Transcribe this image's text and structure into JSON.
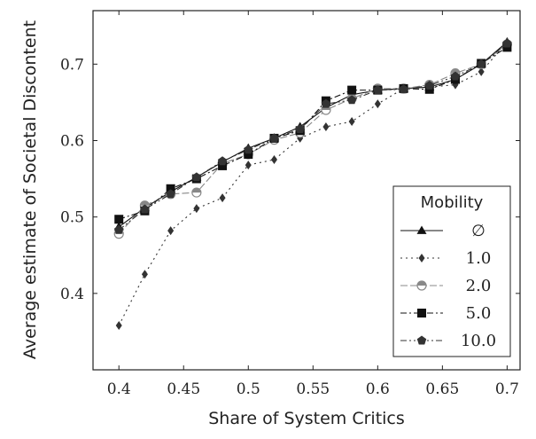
{
  "chart_data": {
    "type": "line",
    "xlabel": "Share of System Critics",
    "ylabel": "Average estimate of Societal Discontent",
    "xlim": [
      0.38,
      0.71
    ],
    "ylim": [
      0.3,
      0.77
    ],
    "xticks": [
      0.4,
      0.45,
      0.5,
      0.55,
      0.6,
      0.65,
      0.7
    ],
    "xtick_labels": [
      "0.4",
      "0.45",
      "0.5",
      "0.55",
      "0.6",
      "0.65",
      "0.7"
    ],
    "yticks": [
      0.4,
      0.5,
      0.6,
      0.7
    ],
    "ytick_labels": [
      "0.4",
      "0.5",
      "0.6",
      "0.7"
    ],
    "grid": false,
    "legend": {
      "title": "Mobility",
      "placement": "bottom-right"
    },
    "x": [
      0.4,
      0.42,
      0.44,
      0.46,
      0.48,
      0.5,
      0.52,
      0.54,
      0.56,
      0.58,
      0.6,
      0.62,
      0.64,
      0.66,
      0.68,
      0.7
    ],
    "series": [
      {
        "name": "∅",
        "marker": "triangle",
        "dash": "",
        "color": "#111111",
        "values": [
          0.487,
          0.512,
          0.533,
          0.552,
          0.572,
          0.59,
          0.603,
          0.618,
          0.643,
          0.66,
          0.666,
          0.668,
          0.67,
          0.68,
          0.7,
          0.729
        ]
      },
      {
        "name": "1.0",
        "marker": "diamond",
        "dash": "2,4",
        "color": "#333333",
        "values": [
          0.358,
          0.425,
          0.482,
          0.511,
          0.525,
          0.568,
          0.575,
          0.603,
          0.618,
          0.625,
          0.648,
          0.668,
          0.67,
          0.673,
          0.69,
          0.729
        ]
      },
      {
        "name": "2.0",
        "marker": "half-circle",
        "dash": "8,3",
        "color": "#888888",
        "values": [
          0.478,
          0.515,
          0.53,
          0.532,
          0.57,
          0.582,
          0.601,
          0.61,
          0.64,
          0.655,
          0.668,
          0.668,
          0.673,
          0.688,
          0.7,
          0.726
        ]
      },
      {
        "name": "5.0",
        "marker": "square",
        "dash": "7,3,2,3",
        "color": "#111111",
        "values": [
          0.497,
          0.508,
          0.537,
          0.55,
          0.567,
          0.582,
          0.603,
          0.613,
          0.652,
          0.666,
          0.666,
          0.668,
          0.667,
          0.68,
          0.701,
          0.722
        ]
      },
      {
        "name": "10.0",
        "marker": "pentagon",
        "dash": "7,3,2,3,2,3",
        "color": "#333333",
        "values": [
          0.483,
          0.51,
          0.53,
          0.552,
          0.573,
          0.588,
          0.603,
          0.615,
          0.648,
          0.653,
          0.666,
          0.667,
          0.672,
          0.684,
          0.7,
          0.727
        ]
      }
    ]
  }
}
